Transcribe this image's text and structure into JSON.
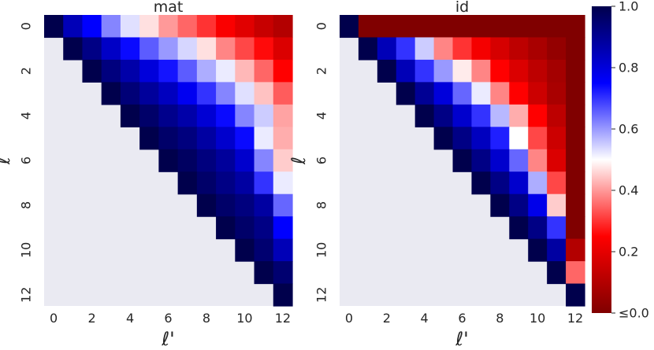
{
  "chart_data": [
    {
      "type": "heatmap",
      "title": "mat",
      "xlabel": "ℓ'",
      "ylabel": "ℓ",
      "x_ticks": [
        0,
        2,
        4,
        6,
        8,
        10,
        12
      ],
      "y_ticks": [
        0,
        2,
        4,
        6,
        8,
        10,
        12
      ],
      "size": 13,
      "masked": "lower-triangle",
      "rows": [
        [
          1.0,
          0.85,
          0.75,
          0.62,
          0.53,
          0.47,
          0.4,
          0.35,
          0.3,
          0.24,
          0.19,
          0.14,
          0.1
        ],
        [
          null,
          1.0,
          0.92,
          0.83,
          0.74,
          0.66,
          0.6,
          0.54,
          0.47,
          0.38,
          0.32,
          0.26,
          0.18
        ],
        [
          null,
          null,
          1.0,
          0.93,
          0.87,
          0.8,
          0.73,
          0.66,
          0.58,
          0.52,
          0.43,
          0.35,
          0.25
        ],
        [
          null,
          null,
          null,
          1.0,
          0.94,
          0.89,
          0.84,
          0.77,
          0.7,
          0.62,
          0.53,
          0.44,
          0.34
        ],
        [
          null,
          null,
          null,
          null,
          1.0,
          0.96,
          0.91,
          0.87,
          0.81,
          0.74,
          0.62,
          0.55,
          0.41
        ],
        [
          null,
          null,
          null,
          null,
          null,
          1.0,
          0.96,
          0.93,
          0.88,
          0.82,
          0.74,
          0.52,
          0.42
        ],
        [
          null,
          null,
          null,
          null,
          null,
          null,
          1.0,
          0.97,
          0.93,
          0.89,
          0.82,
          0.62,
          0.45
        ],
        [
          null,
          null,
          null,
          null,
          null,
          null,
          null,
          1.0,
          0.96,
          0.92,
          0.88,
          0.7,
          0.52
        ],
        [
          null,
          null,
          null,
          null,
          null,
          null,
          null,
          null,
          1.0,
          0.96,
          0.93,
          0.88,
          0.65
        ],
        [
          null,
          null,
          null,
          null,
          null,
          null,
          null,
          null,
          null,
          1.0,
          0.96,
          0.92,
          0.75
        ],
        [
          null,
          null,
          null,
          null,
          null,
          null,
          null,
          null,
          null,
          null,
          1.0,
          0.95,
          0.85
        ],
        [
          null,
          null,
          null,
          null,
          null,
          null,
          null,
          null,
          null,
          null,
          null,
          1.0,
          0.95
        ],
        [
          null,
          null,
          null,
          null,
          null,
          null,
          null,
          null,
          null,
          null,
          null,
          null,
          1.0
        ]
      ]
    },
    {
      "type": "heatmap",
      "title": "id",
      "xlabel": "ℓ'",
      "ylabel": "ℓ",
      "x_ticks": [
        0,
        2,
        4,
        6,
        8,
        10,
        12
      ],
      "y_ticks": [
        0,
        2,
        4,
        6,
        8,
        10,
        12
      ],
      "size": 13,
      "masked": "lower-triangle",
      "rows": [
        [
          1.0,
          0.0,
          0.0,
          0.0,
          0.0,
          0.0,
          0.0,
          0.0,
          0.0,
          0.0,
          0.0,
          0.0,
          0.0
        ],
        [
          null,
          1.0,
          0.85,
          0.7,
          0.55,
          0.38,
          0.3,
          0.23,
          0.17,
          0.12,
          0.08,
          0.04,
          0.0
        ],
        [
          null,
          null,
          1.0,
          0.85,
          0.7,
          0.6,
          0.48,
          0.38,
          0.25,
          0.18,
          0.12,
          0.07,
          0.0
        ],
        [
          null,
          null,
          null,
          1.0,
          0.9,
          0.8,
          0.65,
          0.52,
          0.38,
          0.25,
          0.15,
          0.08,
          0.0
        ],
        [
          null,
          null,
          null,
          null,
          1.0,
          0.92,
          0.82,
          0.7,
          0.57,
          0.42,
          0.25,
          0.12,
          0.0
        ],
        [
          null,
          null,
          null,
          null,
          null,
          1.0,
          0.92,
          0.84,
          0.72,
          0.5,
          0.32,
          0.15,
          0.0
        ],
        [
          null,
          null,
          null,
          null,
          null,
          null,
          1.0,
          0.92,
          0.82,
          0.65,
          0.38,
          0.18,
          0.0
        ],
        [
          null,
          null,
          null,
          null,
          null,
          null,
          null,
          1.0,
          0.92,
          0.82,
          0.58,
          0.32,
          0.0
        ],
        [
          null,
          null,
          null,
          null,
          null,
          null,
          null,
          null,
          1.0,
          0.92,
          0.78,
          0.45,
          0.0
        ],
        [
          null,
          null,
          null,
          null,
          null,
          null,
          null,
          null,
          null,
          1.0,
          0.92,
          0.7,
          0.0
        ],
        [
          null,
          null,
          null,
          null,
          null,
          null,
          null,
          null,
          null,
          null,
          1.0,
          0.88,
          0.1
        ],
        [
          null,
          null,
          null,
          null,
          null,
          null,
          null,
          null,
          null,
          null,
          null,
          1.0,
          0.35
        ],
        [
          null,
          null,
          null,
          null,
          null,
          null,
          null,
          null,
          null,
          null,
          null,
          null,
          1.0
        ]
      ]
    }
  ],
  "colorbar": {
    "colormap": "seismic_r",
    "range": [
      0.0,
      1.0
    ],
    "ticks": [
      "≤0.0",
      "0.2",
      "0.4",
      "0.6",
      "0.8",
      "1.0"
    ],
    "masked_color": "#eaeaf2"
  }
}
